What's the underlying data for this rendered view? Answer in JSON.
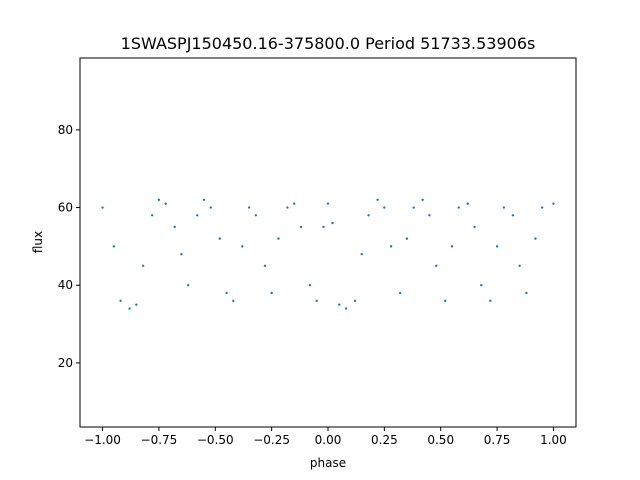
{
  "chart_data": {
    "type": "scatter",
    "title": "1SWASPJ150450.16-375800.0 Period 51733.53906s",
    "xlabel": "phase",
    "ylabel": "flux",
    "xlim": [
      -1.1,
      1.1
    ],
    "ylim": [
      3.5,
      98.5
    ],
    "xticks": [
      -1.0,
      -0.75,
      -0.5,
      -0.25,
      0.0,
      0.25,
      0.5,
      0.75,
      1.0
    ],
    "xtick_labels": [
      "−1.00",
      "−0.75",
      "−0.50",
      "−0.25",
      "0.00",
      "0.25",
      "0.50",
      "0.75",
      "1.00"
    ],
    "yticks": [
      20,
      40,
      60,
      80
    ],
    "ytick_labels": [
      "20",
      "40",
      "60",
      "80"
    ],
    "grid": false,
    "marker_color": "#1f77b4",
    "series": [
      {
        "x": [
          -1.0,
          -0.95,
          -0.92,
          -0.88,
          -0.85,
          -0.82,
          -0.78,
          -0.75,
          -0.72,
          -0.68,
          -0.65,
          -0.62,
          -0.58,
          -0.55,
          -0.52,
          -0.48,
          -0.45,
          -0.42,
          -0.38,
          -0.35,
          -0.32,
          -0.28,
          -0.25,
          -0.22,
          -0.18,
          -0.15,
          -0.12,
          -0.08,
          -0.05,
          -0.02,
          0.0,
          0.02,
          0.05,
          0.08,
          0.12,
          0.15,
          0.18,
          0.22,
          0.25,
          0.28,
          0.32,
          0.35,
          0.38,
          0.42,
          0.45,
          0.48,
          0.52,
          0.55,
          0.58,
          0.62,
          0.65,
          0.68,
          0.72,
          0.75,
          0.78,
          0.82,
          0.85,
          0.88,
          0.92,
          0.95,
          1.0
        ],
        "y": [
          60,
          50,
          36,
          34,
          35,
          45,
          58,
          62,
          61,
          55,
          48,
          40,
          58,
          62,
          60,
          52,
          38,
          36,
          50,
          60,
          58,
          45,
          38,
          52,
          60,
          61,
          55,
          40,
          36,
          55,
          61,
          56,
          35,
          34,
          36,
          48,
          58,
          62,
          60,
          50,
          38,
          52,
          60,
          62,
          58,
          45,
          36,
          50,
          60,
          61,
          55,
          40,
          36,
          50,
          60,
          58,
          45,
          38,
          52,
          60,
          61
        ]
      }
    ]
  }
}
